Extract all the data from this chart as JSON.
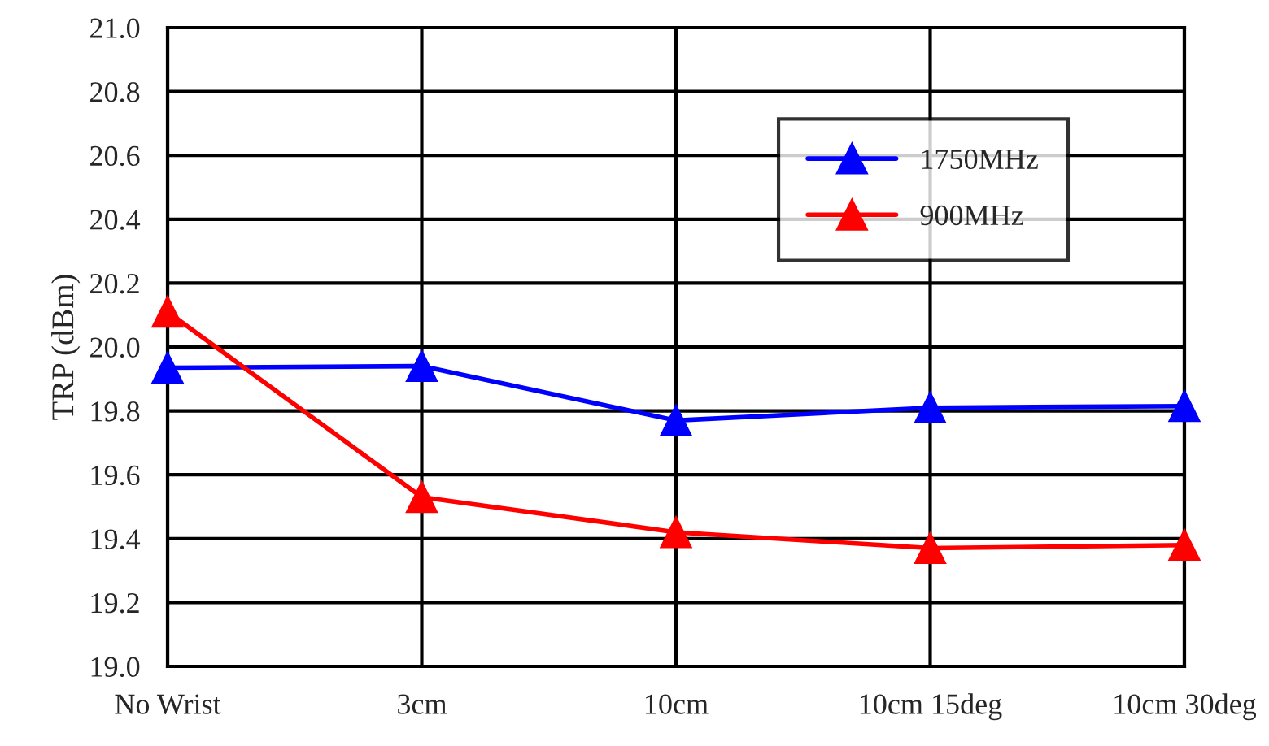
{
  "chart_data": {
    "type": "line",
    "ylabel": "TRP (dBm)",
    "categories": [
      "No Wrist",
      "3cm",
      "10cm",
      "10cm 15deg",
      "10cm 30deg"
    ],
    "series": [
      {
        "name": "1750MHz",
        "color": "#0000ff",
        "values": [
          19.935,
          19.94,
          19.77,
          19.81,
          19.815
        ]
      },
      {
        "name": "900MHz",
        "color": "#ff0000",
        "values": [
          20.11,
          19.53,
          19.42,
          19.37,
          19.38
        ]
      }
    ],
    "ylim": [
      19.0,
      21.0
    ],
    "yticks": [
      {
        "value": 19.0,
        "label": "19.0"
      },
      {
        "value": 19.2,
        "label": "19.2"
      },
      {
        "value": 19.4,
        "label": "19.4"
      },
      {
        "value": 19.6,
        "label": "19.6"
      },
      {
        "value": 19.8,
        "label": "19.8"
      },
      {
        "value": 20.0,
        "label": "20.0"
      },
      {
        "value": 20.2,
        "label": "20.2"
      },
      {
        "value": 20.4,
        "label": "20.4"
      },
      {
        "value": 20.6,
        "label": "20.6"
      },
      {
        "value": 20.8,
        "label": "20.8"
      },
      {
        "value": 21.0,
        "label": "21.0"
      }
    ],
    "grid": true,
    "legend": "top right",
    "marker": "triangle",
    "line_style": "solid"
  }
}
